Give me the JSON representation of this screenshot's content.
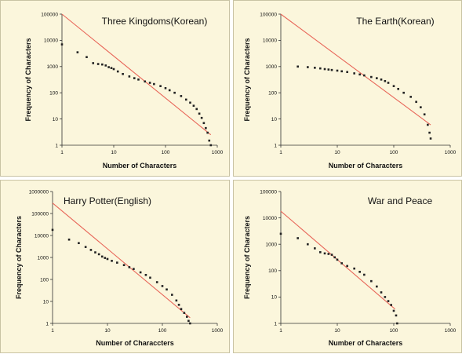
{
  "chart_data": [
    {
      "type": "scatter",
      "title": "Three Kingdoms(Korean)",
      "xlabel": "Number  of Characters",
      "ylabel": "Frequency of Characters",
      "xscale": "log",
      "yscale": "log",
      "xlim": [
        1,
        1000
      ],
      "ylim": [
        1,
        100000
      ],
      "xticks": [
        "1",
        "10",
        "100",
        "1000"
      ],
      "yticks": [
        "1",
        "10",
        "100",
        "1000",
        "10000",
        "100000"
      ],
      "grid": false,
      "legend": "none",
      "colors": {
        "points": "#222222",
        "line": "#e8675a"
      },
      "series": [
        {
          "type": "scatter",
          "x": [
            1,
            2,
            3,
            4,
            5,
            6,
            7,
            8,
            9,
            10,
            12,
            15,
            20,
            25,
            30,
            40,
            50,
            60,
            80,
            100,
            120,
            150,
            200,
            250,
            300,
            350,
            400,
            450,
            500,
            550,
            600,
            650,
            700,
            750
          ],
          "y": [
            7000,
            3500,
            2300,
            1350,
            1250,
            1200,
            1100,
            950,
            880,
            800,
            650,
            520,
            420,
            360,
            320,
            270,
            240,
            215,
            180,
            150,
            125,
            100,
            75,
            55,
            42,
            32,
            24,
            16,
            11,
            7,
            4.5,
            3,
            1.5,
            1
          ]
        },
        {
          "type": "line",
          "x": [
            1,
            750
          ],
          "y": [
            100000,
            2.5
          ]
        }
      ]
    },
    {
      "type": "scatter",
      "title": "The Earth(Korean)",
      "xlabel": "Number of Characters",
      "ylabel": "Frequency of Characters",
      "xscale": "log",
      "yscale": "log",
      "xlim": [
        1,
        1000
      ],
      "ylim": [
        1,
        100000
      ],
      "xticks": [
        "1",
        "10",
        "100",
        "1000"
      ],
      "yticks": [
        "1",
        "10",
        "100",
        "1000",
        "10000",
        "100000"
      ],
      "grid": false,
      "legend": "none",
      "colors": {
        "points": "#222222",
        "line": "#e8675a"
      },
      "series": [
        {
          "type": "scatter",
          "x": [
            2,
            3,
            4,
            5,
            6,
            7,
            8,
            10,
            12,
            15,
            20,
            25,
            30,
            40,
            50,
            60,
            70,
            80,
            100,
            120,
            150,
            200,
            250,
            300,
            350,
            400,
            430,
            450
          ],
          "y": [
            1000,
            950,
            900,
            850,
            800,
            770,
            740,
            700,
            660,
            620,
            550,
            500,
            460,
            400,
            360,
            320,
            280,
            240,
            180,
            140,
            100,
            70,
            45,
            28,
            15,
            6,
            3,
            1.8
          ]
        },
        {
          "type": "line",
          "x": [
            1,
            450
          ],
          "y": [
            100000,
            6
          ]
        }
      ]
    },
    {
      "type": "scatter",
      "title": "Harry Potter(English)",
      "xlabel": "Number of Characcters",
      "ylabel": "Frequency of Characters",
      "xscale": "log",
      "yscale": "log",
      "xlim": [
        1,
        1000
      ],
      "ylim": [
        1,
        1000000
      ],
      "xticks": [
        "1",
        "10",
        "100",
        "1000"
      ],
      "yticks": [
        "1",
        "10",
        "100",
        "1000",
        "10000",
        "100000",
        "1000000"
      ],
      "grid": false,
      "legend": "none",
      "colors": {
        "points": "#222222",
        "line": "#e8675a"
      },
      "series": [
        {
          "type": "scatter",
          "x": [
            1,
            2,
            3,
            4,
            5,
            6,
            7,
            8,
            9,
            10,
            12,
            15,
            20,
            25,
            30,
            40,
            50,
            60,
            80,
            100,
            120,
            150,
            180,
            200,
            220,
            250,
            280,
            300,
            320
          ],
          "y": [
            18000,
            6500,
            4500,
            3000,
            2200,
            1700,
            1400,
            1100,
            950,
            850,
            700,
            580,
            450,
            360,
            300,
            210,
            160,
            120,
            75,
            50,
            35,
            20,
            11,
            7,
            4.5,
            3,
            2,
            1.3,
            1
          ]
        },
        {
          "type": "line",
          "x": [
            1,
            320
          ],
          "y": [
            300000,
            1.8
          ]
        }
      ]
    },
    {
      "type": "scatter",
      "title": "War and Peace",
      "xlabel": "Number of Characters",
      "ylabel": "Frequency of Characters",
      "xscale": "log",
      "yscale": "log",
      "xlim": [
        1,
        1000
      ],
      "ylim": [
        1,
        100000
      ],
      "xticks": [
        "1",
        "10",
        "100",
        "1000"
      ],
      "yticks": [
        "1",
        "10",
        "100",
        "1000",
        "10000",
        "100000"
      ],
      "grid": false,
      "legend": "none",
      "colors": {
        "points": "#222222",
        "line": "#e8675a"
      },
      "series": [
        {
          "type": "scatter",
          "x": [
            1,
            2,
            3,
            4,
            5,
            6,
            7,
            8,
            9,
            10,
            12,
            15,
            20,
            25,
            30,
            40,
            50,
            60,
            70,
            80,
            90,
            100,
            110,
            115
          ],
          "y": [
            2500,
            1700,
            1000,
            700,
            500,
            450,
            430,
            400,
            320,
            260,
            190,
            150,
            120,
            90,
            70,
            40,
            25,
            15,
            10,
            7,
            5,
            3,
            2,
            1
          ]
        },
        {
          "type": "line",
          "x": [
            1,
            105
          ],
          "y": [
            18000,
            3.5
          ]
        }
      ]
    }
  ]
}
